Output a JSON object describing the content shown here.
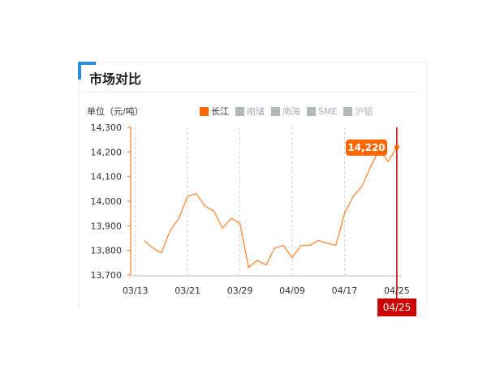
{
  "header": {
    "title": "市场对比"
  },
  "chart_data": {
    "type": "line",
    "ylabel": "单位（元/吨）",
    "legend": [
      {
        "name": "长江",
        "color": "#ff6600",
        "active": true
      },
      {
        "name": "南储",
        "color": "#b0b8b8",
        "active": false
      },
      {
        "name": "南海",
        "color": "#b0b8b8",
        "active": false
      },
      {
        "name": "SME",
        "color": "#b0b8b8",
        "active": false
      },
      {
        "name": "沪铝",
        "color": "#b0b8b8",
        "active": false
      }
    ],
    "legend_position": "top",
    "ylim": [
      13700,
      14300
    ],
    "yticks": [
      "14,300",
      "14,200",
      "14,100",
      "14,000",
      "13,900",
      "13,800",
      "13,700"
    ],
    "xticks": [
      "03/13",
      "03/21",
      "03/29",
      "04/09",
      "04/17",
      "04/25"
    ],
    "series": [
      {
        "name": "长江",
        "color": "#ff8833",
        "values": [
          13840,
          13810,
          13790,
          13880,
          13930,
          14020,
          14030,
          13980,
          13960,
          13890,
          13930,
          13910,
          13730,
          13760,
          13740,
          13810,
          13820,
          13770,
          13820,
          13820,
          13840,
          13830,
          13820,
          13950,
          14020,
          14060,
          14140,
          14210,
          14160,
          14220
        ]
      }
    ],
    "tooltip": {
      "value": "14,220",
      "date": "04/25"
    },
    "grid": "vertical dashed"
  }
}
